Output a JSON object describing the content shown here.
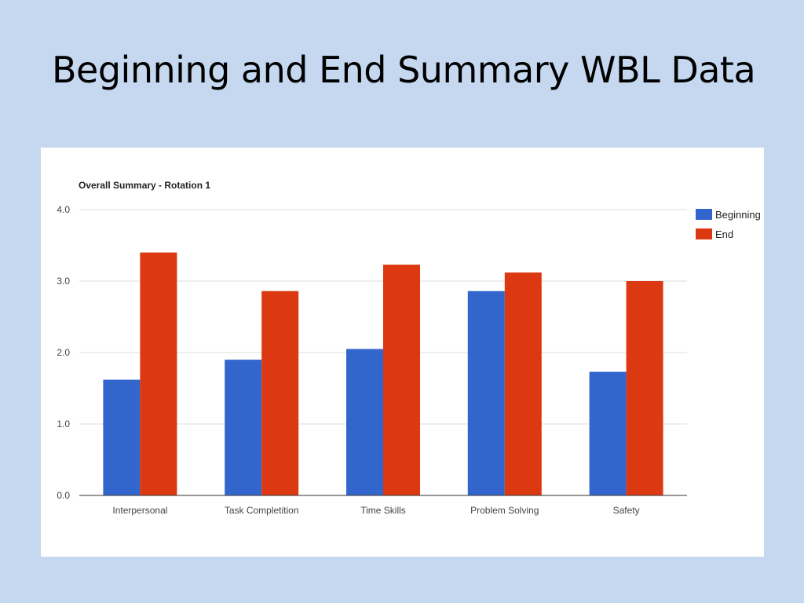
{
  "slide": {
    "title": "Beginning and End Summary WBL Data"
  },
  "chart_data": {
    "type": "bar",
    "title": "Overall Summary - Rotation 1",
    "xlabel": "",
    "ylabel": "",
    "categories": [
      "Interpersonal",
      "Task Completition",
      "Time Skills",
      "Problem Solving",
      "Safety"
    ],
    "series": [
      {
        "name": "Beginning",
        "color": "#3366cc",
        "values": [
          1.62,
          1.9,
          2.05,
          2.86,
          1.73
        ]
      },
      {
        "name": "End",
        "color": "#dc3912",
        "values": [
          3.4,
          2.86,
          3.23,
          3.12,
          3.0
        ]
      }
    ],
    "ylim": [
      0,
      4
    ],
    "yticks": [
      0,
      1,
      2,
      3,
      4
    ],
    "ytick_labels": [
      "0.0",
      "1.0",
      "2.0",
      "3.0",
      "4.0"
    ],
    "grid": true,
    "legend_position": "right"
  }
}
